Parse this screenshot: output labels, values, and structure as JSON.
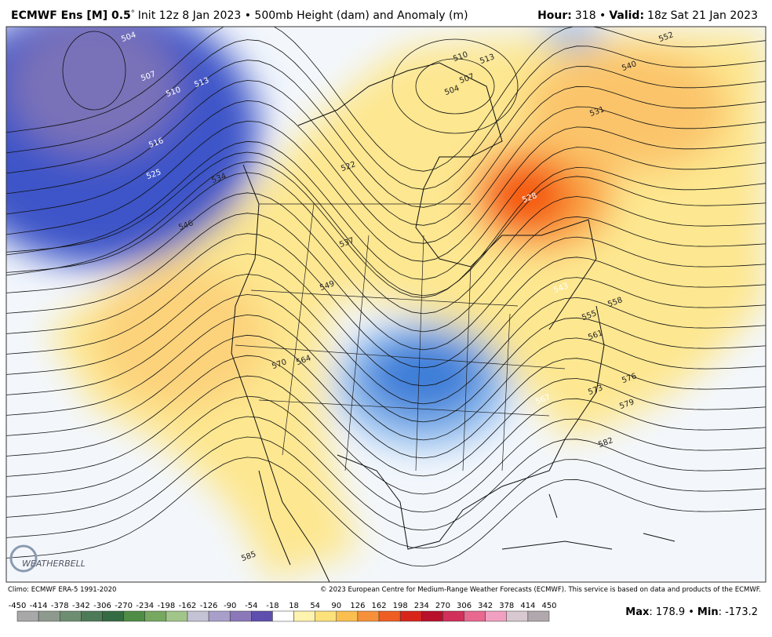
{
  "header": {
    "title_bold": "ECMWF Ens [M] 0.5",
    "degree": "°",
    "title_rest": "Init 12z 8 Jan 2023 • 500mb Height (dam) and Anomaly (m)",
    "hour_label": "Hour:",
    "hour_value": "318 •",
    "valid_label": "Valid:",
    "valid_value": "18z Sat 21 Jan 2023"
  },
  "contour_labels": [
    "504",
    "507",
    "510",
    "513",
    "516",
    "525",
    "534",
    "546",
    "522",
    "537",
    "549",
    "570",
    "564",
    "510",
    "513",
    "507",
    "504",
    "531",
    "540",
    "552",
    "528",
    "543",
    "555",
    "558",
    "561",
    "567",
    "573",
    "576",
    "579",
    "582",
    "585"
  ],
  "logo": "WEATHERBELL",
  "footer": {
    "climo": "Climo: ECMWF ERA-5 1991-2020",
    "copyright": "© 2023 European Centre for Medium-Range Weather Forecasts (ECMWF). This service is based on data and products of the ECMWF."
  },
  "colorbar": {
    "labels": [
      -450,
      -414,
      -378,
      -342,
      -306,
      -270,
      -234,
      -198,
      -162,
      -126,
      -90,
      -54,
      -18,
      18,
      54,
      90,
      126,
      162,
      198,
      234,
      270,
      306,
      342,
      378,
      414,
      450
    ]
  },
  "stats": {
    "max_label": "Max",
    "max_value": ": 178.9 •",
    "min_label": "Min",
    "min_value": ": -173.2"
  }
}
